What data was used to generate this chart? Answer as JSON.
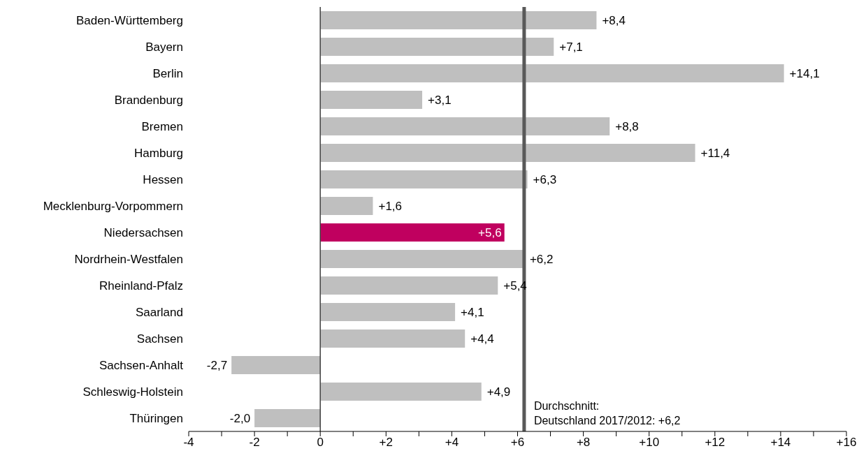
{
  "chart_data": {
    "type": "bar",
    "orientation": "horizontal",
    "categories": [
      "Baden-Württemberg",
      "Bayern",
      "Berlin",
      "Brandenburg",
      "Bremen",
      "Hamburg",
      "Hessen",
      "Mecklenburg-Vorpommern",
      "Niedersachsen",
      "Nordrhein-Westfalen",
      "Rheinland-Pfalz",
      "Saarland",
      "Sachsen",
      "Sachsen-Anhalt",
      "Schleswig-Holstein",
      "Thüringen"
    ],
    "values": [
      8.4,
      7.1,
      14.1,
      3.1,
      8.8,
      11.4,
      6.3,
      1.6,
      5.6,
      6.2,
      5.4,
      4.1,
      4.4,
      -2.7,
      4.9,
      -2.0
    ],
    "value_labels": [
      "+8,4",
      "+7,1",
      "+14,1",
      "+3,1",
      "+8,8",
      "+11,4",
      "+6,3",
      "+1,6",
      "+5,6",
      "+6,2",
      "+5,4",
      "+4,1",
      "+4,4",
      "-2,7",
      "+4,9",
      "-2,0"
    ],
    "colors": [
      "#bfbfbf",
      "#bfbfbf",
      "#bfbfbf",
      "#bfbfbf",
      "#bfbfbf",
      "#bfbfbf",
      "#bfbfbf",
      "#bfbfbf",
      "#c0005f",
      "#bfbfbf",
      "#bfbfbf",
      "#bfbfbf",
      "#bfbfbf",
      "#bfbfbf",
      "#bfbfbf",
      "#bfbfbf"
    ],
    "xlim": [
      -4,
      16
    ],
    "xticks": [
      {
        "value": -4,
        "label": "-4"
      },
      {
        "value": -3,
        "label": null
      },
      {
        "value": -2,
        "label": "-2"
      },
      {
        "value": -1,
        "label": null
      },
      {
        "value": 0,
        "label": "0"
      },
      {
        "value": 1,
        "label": null
      },
      {
        "value": 2,
        "label": "+2"
      },
      {
        "value": 3,
        "label": null
      },
      {
        "value": 4,
        "label": "+4"
      },
      {
        "value": 5,
        "label": null
      },
      {
        "value": 6,
        "label": "+6"
      },
      {
        "value": 7,
        "label": null
      },
      {
        "value": 8,
        "label": "+8"
      },
      {
        "value": 9,
        "label": null
      },
      {
        "value": 10,
        "label": "+10"
      },
      {
        "value": 11,
        "label": null
      },
      {
        "value": 12,
        "label": "+12"
      },
      {
        "value": 13,
        "label": null
      },
      {
        "value": 14,
        "label": "+14"
      },
      {
        "value": 15,
        "label": null
      },
      {
        "value": 16,
        "label": "+16"
      }
    ],
    "ref_lines": [
      {
        "axis": "x",
        "value": 6.2,
        "label": "Durchschnitt:\nDeutschland 2017/2012: +6,2",
        "color": "#595959"
      }
    ],
    "legend": false
  }
}
